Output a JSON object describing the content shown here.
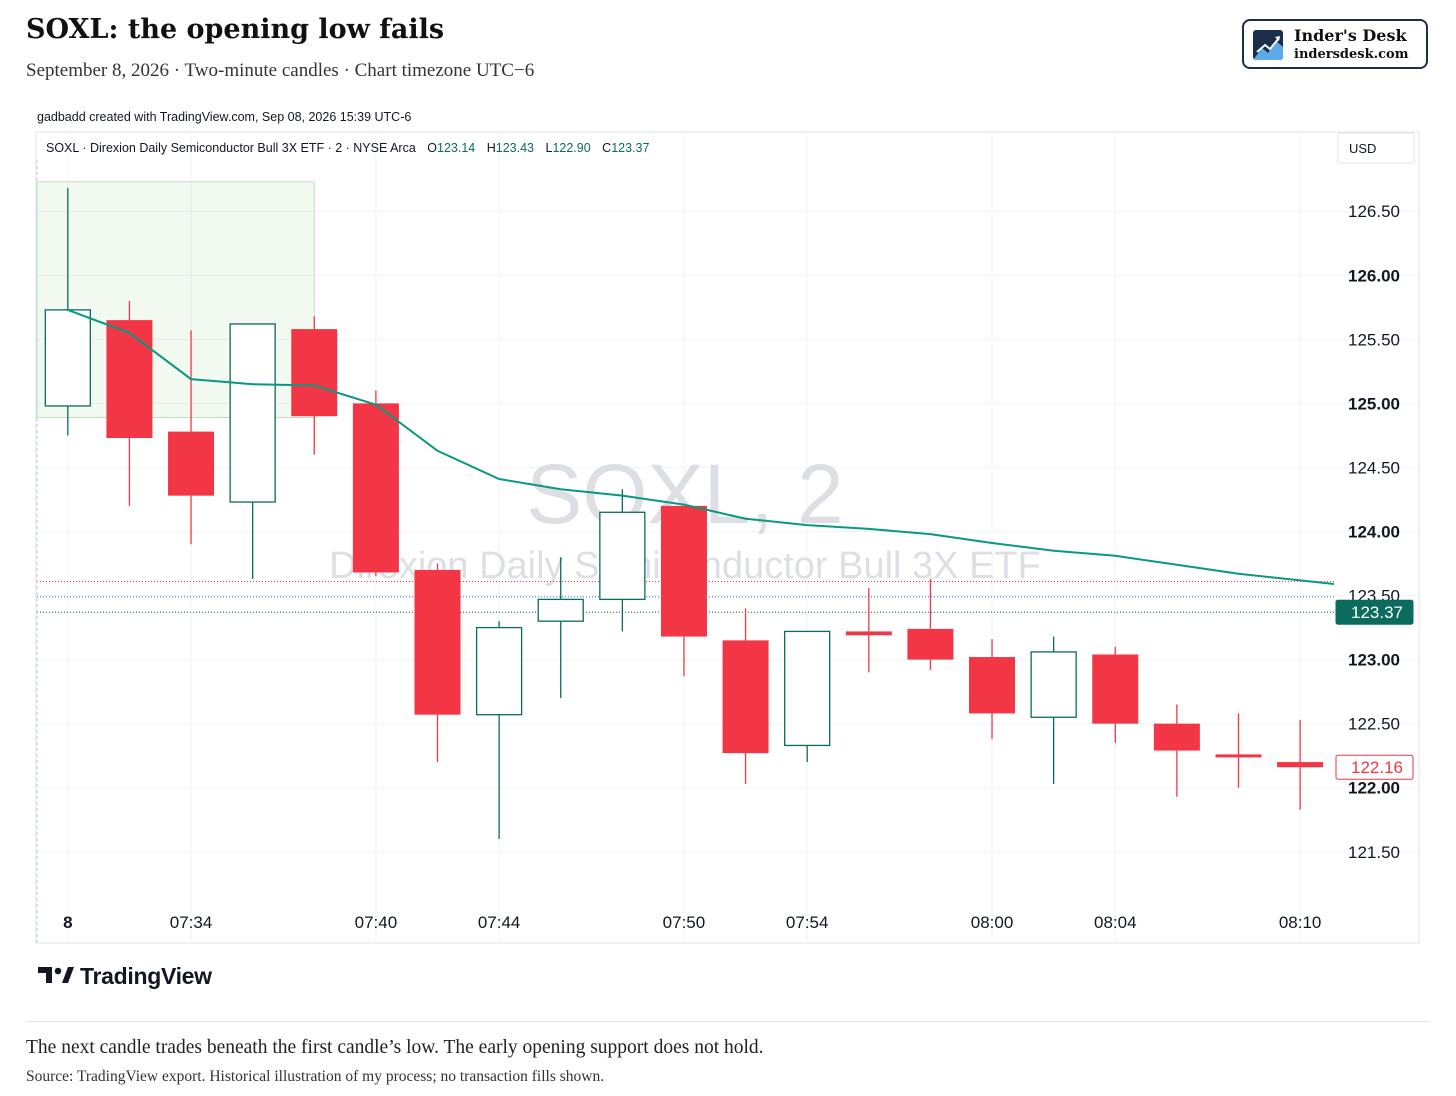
{
  "header": {
    "title": "SOXL: the opening low fails",
    "subtitle": "September 8, 2026 · Two-minute candles · Chart timezone UTC−6"
  },
  "brand": {
    "name": "Inder's Desk",
    "url": "indersdesk.com",
    "color": "#1b2f4a"
  },
  "credit": "gadbadd created with TradingView.com, Sep 08, 2026 15:39 UTC-6",
  "footer": {
    "platform": "TradingView",
    "caption": "The next candle trades beneath the first candle’s low. The early opening support does not hold.",
    "source": "Source: TradingView export. Historical illustration of my process; no transaction fills shown."
  },
  "chart_data": {
    "type": "candlestick",
    "legend": {
      "symbol_desc": "SOXL · Direxion Daily Semiconductor Bull 3X ETF · 2 · NYSE Arca",
      "o_label": "O",
      "o_value": "123.14",
      "h_label": "H",
      "h_value": "123.43",
      "l_label": "L",
      "l_value": "122.90",
      "c_label": "C",
      "c_value": "123.37"
    },
    "currency": "USD",
    "watermark": {
      "line1": "SOXL, 2",
      "line2": "Direxion Daily Semiconductor Bull 3X ETF"
    },
    "ylim": [
      121.1,
      126.9
    ],
    "xlim": [
      -0.5,
      20.55
    ],
    "y_ticks": [
      {
        "value": 126.5,
        "label": "126.50",
        "bold": false
      },
      {
        "value": 126.0,
        "label": "126.00",
        "bold": true
      },
      {
        "value": 125.5,
        "label": "125.50",
        "bold": false
      },
      {
        "value": 125.0,
        "label": "125.00",
        "bold": true
      },
      {
        "value": 124.5,
        "label": "124.50",
        "bold": false
      },
      {
        "value": 124.0,
        "label": "124.00",
        "bold": true
      },
      {
        "value": 123.5,
        "label": "123.50",
        "bold": false
      },
      {
        "value": 123.0,
        "label": "123.00",
        "bold": true
      },
      {
        "value": 122.5,
        "label": "122.50",
        "bold": false
      },
      {
        "value": 122.0,
        "label": "122.00",
        "bold": true
      },
      {
        "value": 121.5,
        "label": "121.50",
        "bold": false
      }
    ],
    "x_ticks": [
      {
        "index": 0,
        "label": "8",
        "bold": true
      },
      {
        "index": 2,
        "label": "07:34",
        "bold": false
      },
      {
        "index": 5,
        "label": "07:40",
        "bold": false
      },
      {
        "index": 7,
        "label": "07:44",
        "bold": false
      },
      {
        "index": 10,
        "label": "07:50",
        "bold": false
      },
      {
        "index": 12,
        "label": "07:54",
        "bold": false
      },
      {
        "index": 15,
        "label": "08:00",
        "bold": false
      },
      {
        "index": 17,
        "label": "08:04",
        "bold": false
      },
      {
        "index": 20,
        "label": "08:10",
        "bold": false
      }
    ],
    "candles": [
      {
        "time": "07:30",
        "open": 124.98,
        "high": 126.68,
        "low": 124.75,
        "close": 125.73
      },
      {
        "time": "07:32",
        "open": 125.65,
        "high": 125.8,
        "low": 124.2,
        "close": 124.73
      },
      {
        "time": "07:34",
        "open": 124.78,
        "high": 125.57,
        "low": 123.9,
        "close": 124.28
      },
      {
        "time": "07:36",
        "open": 124.23,
        "high": 125.62,
        "low": 123.63,
        "close": 125.62
      },
      {
        "time": "07:38",
        "open": 125.58,
        "high": 125.68,
        "low": 124.6,
        "close": 124.9
      },
      {
        "time": "07:40",
        "open": 125.0,
        "high": 125.1,
        "low": 123.65,
        "close": 123.68
      },
      {
        "time": "07:42",
        "open": 123.7,
        "high": 123.75,
        "low": 122.2,
        "close": 122.57
      },
      {
        "time": "07:44",
        "open": 122.57,
        "high": 123.3,
        "low": 121.6,
        "close": 123.25
      },
      {
        "time": "07:46",
        "open": 123.3,
        "high": 123.8,
        "low": 122.7,
        "close": 123.47
      },
      {
        "time": "07:48",
        "open": 123.47,
        "high": 124.33,
        "low": 123.22,
        "close": 124.15
      },
      {
        "time": "07:50",
        "open": 124.2,
        "high": 124.2,
        "low": 122.87,
        "close": 123.18
      },
      {
        "time": "07:52",
        "open": 123.15,
        "high": 123.4,
        "low": 122.03,
        "close": 122.27
      },
      {
        "time": "07:54",
        "open": 122.33,
        "high": 123.22,
        "low": 122.2,
        "close": 123.22
      },
      {
        "time": "07:56",
        "open": 123.22,
        "high": 123.56,
        "low": 122.9,
        "close": 123.19
      },
      {
        "time": "07:58",
        "open": 123.24,
        "high": 123.63,
        "low": 122.92,
        "close": 123.0
      },
      {
        "time": "08:00",
        "open": 123.02,
        "high": 123.16,
        "low": 122.38,
        "close": 122.58
      },
      {
        "time": "08:02",
        "open": 122.55,
        "high": 123.18,
        "low": 122.03,
        "close": 123.06
      },
      {
        "time": "08:04",
        "open": 123.04,
        "high": 123.1,
        "low": 122.35,
        "close": 122.5
      },
      {
        "time": "08:06",
        "open": 122.5,
        "high": 122.65,
        "low": 121.93,
        "close": 122.29
      },
      {
        "time": "08:08",
        "open": 122.26,
        "high": 122.58,
        "low": 122.0,
        "close": 122.24
      },
      {
        "time": "08:10",
        "open": 122.2,
        "high": 122.53,
        "low": 121.83,
        "close": 122.16
      }
    ],
    "moving_average": {
      "color": "#089981",
      "points": [
        {
          "x": 0,
          "y": 125.73
        },
        {
          "x": 1,
          "y": 125.55
        },
        {
          "x": 2,
          "y": 125.19
        },
        {
          "x": 3,
          "y": 125.15
        },
        {
          "x": 4,
          "y": 125.14
        },
        {
          "x": 5,
          "y": 124.99
        },
        {
          "x": 6,
          "y": 124.63
        },
        {
          "x": 7,
          "y": 124.41
        },
        {
          "x": 8,
          "y": 124.33
        },
        {
          "x": 9,
          "y": 124.28
        },
        {
          "x": 10,
          "y": 124.21
        },
        {
          "x": 11,
          "y": 124.1
        },
        {
          "x": 12,
          "y": 124.05
        },
        {
          "x": 13,
          "y": 124.02
        },
        {
          "x": 14,
          "y": 123.98
        },
        {
          "x": 15,
          "y": 123.91
        },
        {
          "x": 16,
          "y": 123.85
        },
        {
          "x": 17,
          "y": 123.81
        },
        {
          "x": 18,
          "y": 123.74
        },
        {
          "x": 19,
          "y": 123.67
        },
        {
          "x": 20.55,
          "y": 123.59
        }
      ]
    },
    "opening_range_box": {
      "x_start": -0.5,
      "x_end": 4.0,
      "y_top": 126.73,
      "y_bottom": 124.89,
      "color": "#4caf50"
    },
    "price_lines": [
      {
        "value": 123.61,
        "color": "#f23645"
      },
      {
        "value": 123.49,
        "color": "#2962ff"
      },
      {
        "value": 123.37,
        "color": "#1b5e55"
      }
    ],
    "price_tags": [
      {
        "value": 123.37,
        "label": "123.37",
        "style": "filled",
        "color": "#0b6b5c"
      },
      {
        "value": 122.16,
        "label": "122.16",
        "style": "outline",
        "color": "#f23645"
      }
    ],
    "colors": {
      "up": "#0b6b5c",
      "down": "#f23645",
      "grid": "#f0f3fa"
    }
  }
}
